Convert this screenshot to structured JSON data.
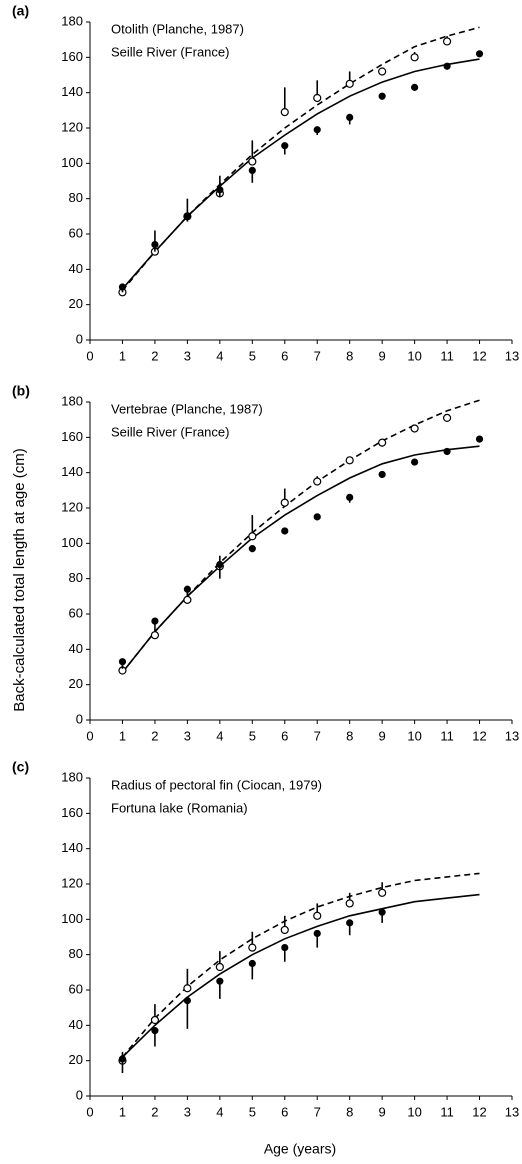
{
  "axis_labels": {
    "y": "Back-calculated total length at age (cm)",
    "x": "Age (years)"
  },
  "chart_data": [
    {
      "type": "scatter",
      "panel": "(a)",
      "annotations": [
        "Otolith (Planche, 1987)",
        "Seille River (France)"
      ],
      "xlim": [
        0,
        13
      ],
      "xticks": [
        0,
        1,
        2,
        3,
        4,
        5,
        6,
        7,
        8,
        9,
        10,
        11,
        12,
        13
      ],
      "ylim": [
        0,
        180
      ],
      "yticks": [
        0,
        20,
        40,
        60,
        80,
        100,
        120,
        140,
        160,
        180
      ],
      "color": "#000000",
      "series": [
        {
          "style": "dashed-line",
          "x": [
            1,
            2,
            3,
            4,
            5,
            6,
            7,
            8,
            9,
            10,
            11,
            12
          ],
          "values": [
            28,
            50,
            70,
            88,
            105,
            120,
            133,
            145,
            156,
            166,
            172,
            177
          ]
        },
        {
          "style": "solid-line",
          "x": [
            1,
            2,
            3,
            4,
            5,
            6,
            7,
            8,
            9,
            10,
            11,
            12
          ],
          "values": [
            29,
            50,
            70,
            87,
            103,
            116,
            128,
            138,
            146,
            152,
            156,
            159
          ]
        },
        {
          "style": "open-marker",
          "error_direction": "up",
          "x": [
            1,
            2,
            3,
            4,
            5,
            6,
            7,
            8,
            9,
            10,
            11
          ],
          "values": [
            27,
            50,
            70,
            83,
            101,
            129,
            137,
            145,
            152,
            160,
            169
          ],
          "errors": [
            5,
            12,
            10,
            10,
            12,
            14,
            10,
            7,
            0,
            3,
            3
          ]
        },
        {
          "style": "filled-marker",
          "error_direction": "down",
          "x": [
            1,
            2,
            3,
            4,
            5,
            6,
            7,
            8,
            9,
            10,
            11,
            12
          ],
          "values": [
            30,
            54,
            70,
            85,
            96,
            110,
            119,
            126,
            138,
            143,
            155,
            162
          ],
          "errors": [
            3,
            4,
            3,
            4,
            7,
            5,
            3,
            4,
            2,
            2,
            2,
            0
          ]
        }
      ]
    },
    {
      "type": "scatter",
      "panel": "(b)",
      "annotations": [
        "Vertebrae (Planche, 1987)",
        "Seille River (France)"
      ],
      "xlim": [
        0,
        13
      ],
      "xticks": [
        0,
        1,
        2,
        3,
        4,
        5,
        6,
        7,
        8,
        9,
        10,
        11,
        12,
        13
      ],
      "ylim": [
        0,
        180
      ],
      "yticks": [
        0,
        20,
        40,
        60,
        80,
        100,
        120,
        140,
        160,
        180
      ],
      "color": "#000000",
      "series": [
        {
          "style": "dashed-line",
          "x": [
            1,
            2,
            3,
            4,
            5,
            6,
            7,
            8,
            9,
            10,
            11,
            12
          ],
          "values": [
            27,
            50,
            70,
            89,
            106,
            121,
            135,
            147,
            158,
            167,
            175,
            181
          ]
        },
        {
          "style": "solid-line",
          "x": [
            1,
            2,
            3,
            4,
            5,
            6,
            7,
            8,
            9,
            10,
            11,
            12
          ],
          "values": [
            27,
            50,
            70,
            87,
            103,
            116,
            127,
            137,
            145,
            150,
            153,
            155
          ]
        },
        {
          "style": "open-marker",
          "error_direction": "up",
          "x": [
            1,
            2,
            3,
            4,
            5,
            6,
            7,
            8,
            9,
            10,
            11
          ],
          "values": [
            28,
            48,
            68,
            87,
            104,
            123,
            135,
            147,
            157,
            165,
            171
          ],
          "errors": [
            3,
            5,
            8,
            6,
            12,
            8,
            3,
            2,
            1,
            1,
            1
          ]
        },
        {
          "style": "filled-marker",
          "error_direction": "down",
          "x": [
            1,
            2,
            3,
            4,
            5,
            6,
            7,
            8,
            9,
            10,
            11,
            12
          ],
          "values": [
            33,
            56,
            74,
            88,
            97,
            107,
            115,
            126,
            139,
            146,
            152,
            159
          ],
          "errors": [
            4,
            3,
            4,
            8,
            2,
            2,
            2,
            3,
            2,
            1,
            1,
            1
          ]
        }
      ]
    },
    {
      "type": "scatter",
      "panel": "(c)",
      "annotations": [
        "Radius of pectoral fin (Ciocan, 1979)",
        "Fortuna lake (Romania)"
      ],
      "xlim": [
        0,
        13
      ],
      "xticks": [
        0,
        1,
        2,
        3,
        4,
        5,
        6,
        7,
        8,
        9,
        10,
        11,
        12,
        13
      ],
      "ylim": [
        0,
        180
      ],
      "yticks": [
        0,
        20,
        40,
        60,
        80,
        100,
        120,
        140,
        160,
        180
      ],
      "color": "#000000",
      "series": [
        {
          "style": "dashed-line",
          "x": [
            1,
            2,
            3,
            4,
            5,
            6,
            7,
            8,
            9,
            10,
            11,
            12
          ],
          "values": [
            22,
            44,
            62,
            77,
            89,
            99,
            107,
            113,
            118,
            122,
            124,
            126
          ]
        },
        {
          "style": "solid-line",
          "x": [
            1,
            2,
            3,
            4,
            5,
            6,
            7,
            8,
            9,
            10,
            11,
            12
          ],
          "values": [
            22,
            40,
            56,
            69,
            80,
            89,
            96,
            102,
            106,
            110,
            112,
            114
          ]
        },
        {
          "style": "open-marker",
          "error_direction": "up",
          "x": [
            1,
            2,
            3,
            4,
            5,
            6,
            7,
            8,
            9
          ],
          "values": [
            20,
            43,
            61,
            73,
            84,
            94,
            102,
            109,
            115
          ],
          "errors": [
            5,
            9,
            11,
            9,
            9,
            8,
            7,
            6,
            6
          ]
        },
        {
          "style": "filled-marker",
          "error_direction": "down",
          "x": [
            1,
            2,
            3,
            4,
            5,
            6,
            7,
            8,
            9
          ],
          "values": [
            21,
            37,
            54,
            65,
            75,
            84,
            92,
            98,
            104
          ],
          "errors": [
            8,
            9,
            16,
            10,
            9,
            8,
            8,
            7,
            6
          ]
        }
      ]
    }
  ]
}
